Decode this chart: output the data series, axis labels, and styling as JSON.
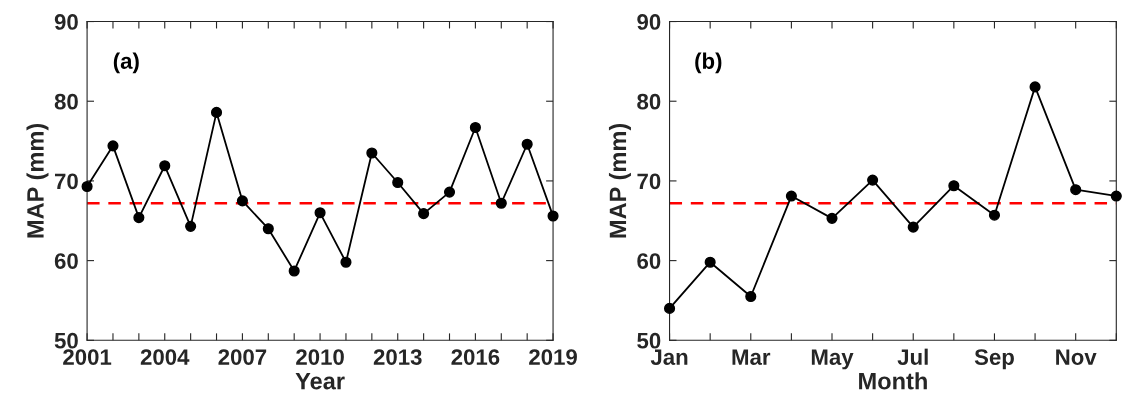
{
  "chart_data": [
    {
      "type": "line",
      "xlabel": "Year",
      "ylabel": "MAP (mm)",
      "annotations": [
        "(a)"
      ],
      "marker": "circle",
      "line_style": "solid",
      "grid": false,
      "legend": false,
      "x": [
        2001,
        2002,
        2003,
        2004,
        2005,
        2006,
        2007,
        2008,
        2009,
        2010,
        2011,
        2012,
        2013,
        2014,
        2015,
        2016,
        2017,
        2018,
        2019
      ],
      "series": [
        {
          "color": "#000000",
          "values": [
            69.3,
            74.4,
            65.4,
            71.9,
            64.3,
            78.6,
            67.5,
            64.0,
            58.7,
            66.0,
            59.8,
            73.5,
            69.8,
            65.9,
            68.6,
            76.7,
            67.2,
            74.6,
            65.6
          ]
        }
      ],
      "xlim": [
        2001,
        2019
      ],
      "xticks": [
        2001,
        {
          "value": 2002,
          "label": null
        },
        {
          "value": 2003,
          "label": null
        },
        2004,
        {
          "value": 2005,
          "label": null
        },
        {
          "value": 2006,
          "label": null
        },
        2007,
        {
          "value": 2008,
          "label": null
        },
        {
          "value": 2009,
          "label": null
        },
        2010,
        {
          "value": 2011,
          "label": null
        },
        {
          "value": 2012,
          "label": null
        },
        2013,
        {
          "value": 2014,
          "label": null
        },
        {
          "value": 2015,
          "label": null
        },
        2016,
        {
          "value": 2017,
          "label": null
        },
        {
          "value": 2018,
          "label": null
        },
        2019
      ],
      "ylim": [
        50,
        90
      ],
      "yticks": [
        50,
        60,
        70,
        80,
        90
      ],
      "ref_lines": [
        {
          "axis": "y",
          "value": 67.2,
          "color": "#ff0000",
          "line_style": "dashed"
        }
      ]
    },
    {
      "type": "line",
      "xlabel": "Month",
      "ylabel": "MAP (mm)",
      "annotations": [
        "(b)"
      ],
      "marker": "circle",
      "line_style": "solid",
      "grid": false,
      "legend": false,
      "categories": [
        "Jan",
        null,
        "Mar",
        null,
        "May",
        null,
        "Jul",
        null,
        "Sep",
        null,
        "Nov",
        null
      ],
      "series": [
        {
          "color": "#000000",
          "values": [
            54.0,
            59.8,
            55.5,
            68.1,
            65.3,
            70.1,
            64.2,
            69.4,
            65.7,
            81.8,
            68.9,
            68.1
          ]
        }
      ],
      "ylim": [
        50,
        90
      ],
      "yticks": [
        50,
        60,
        70,
        80,
        90
      ],
      "ref_lines": [
        {
          "axis": "y",
          "value": 67.2,
          "color": "#ff0000",
          "line_style": "dashed"
        }
      ]
    }
  ]
}
